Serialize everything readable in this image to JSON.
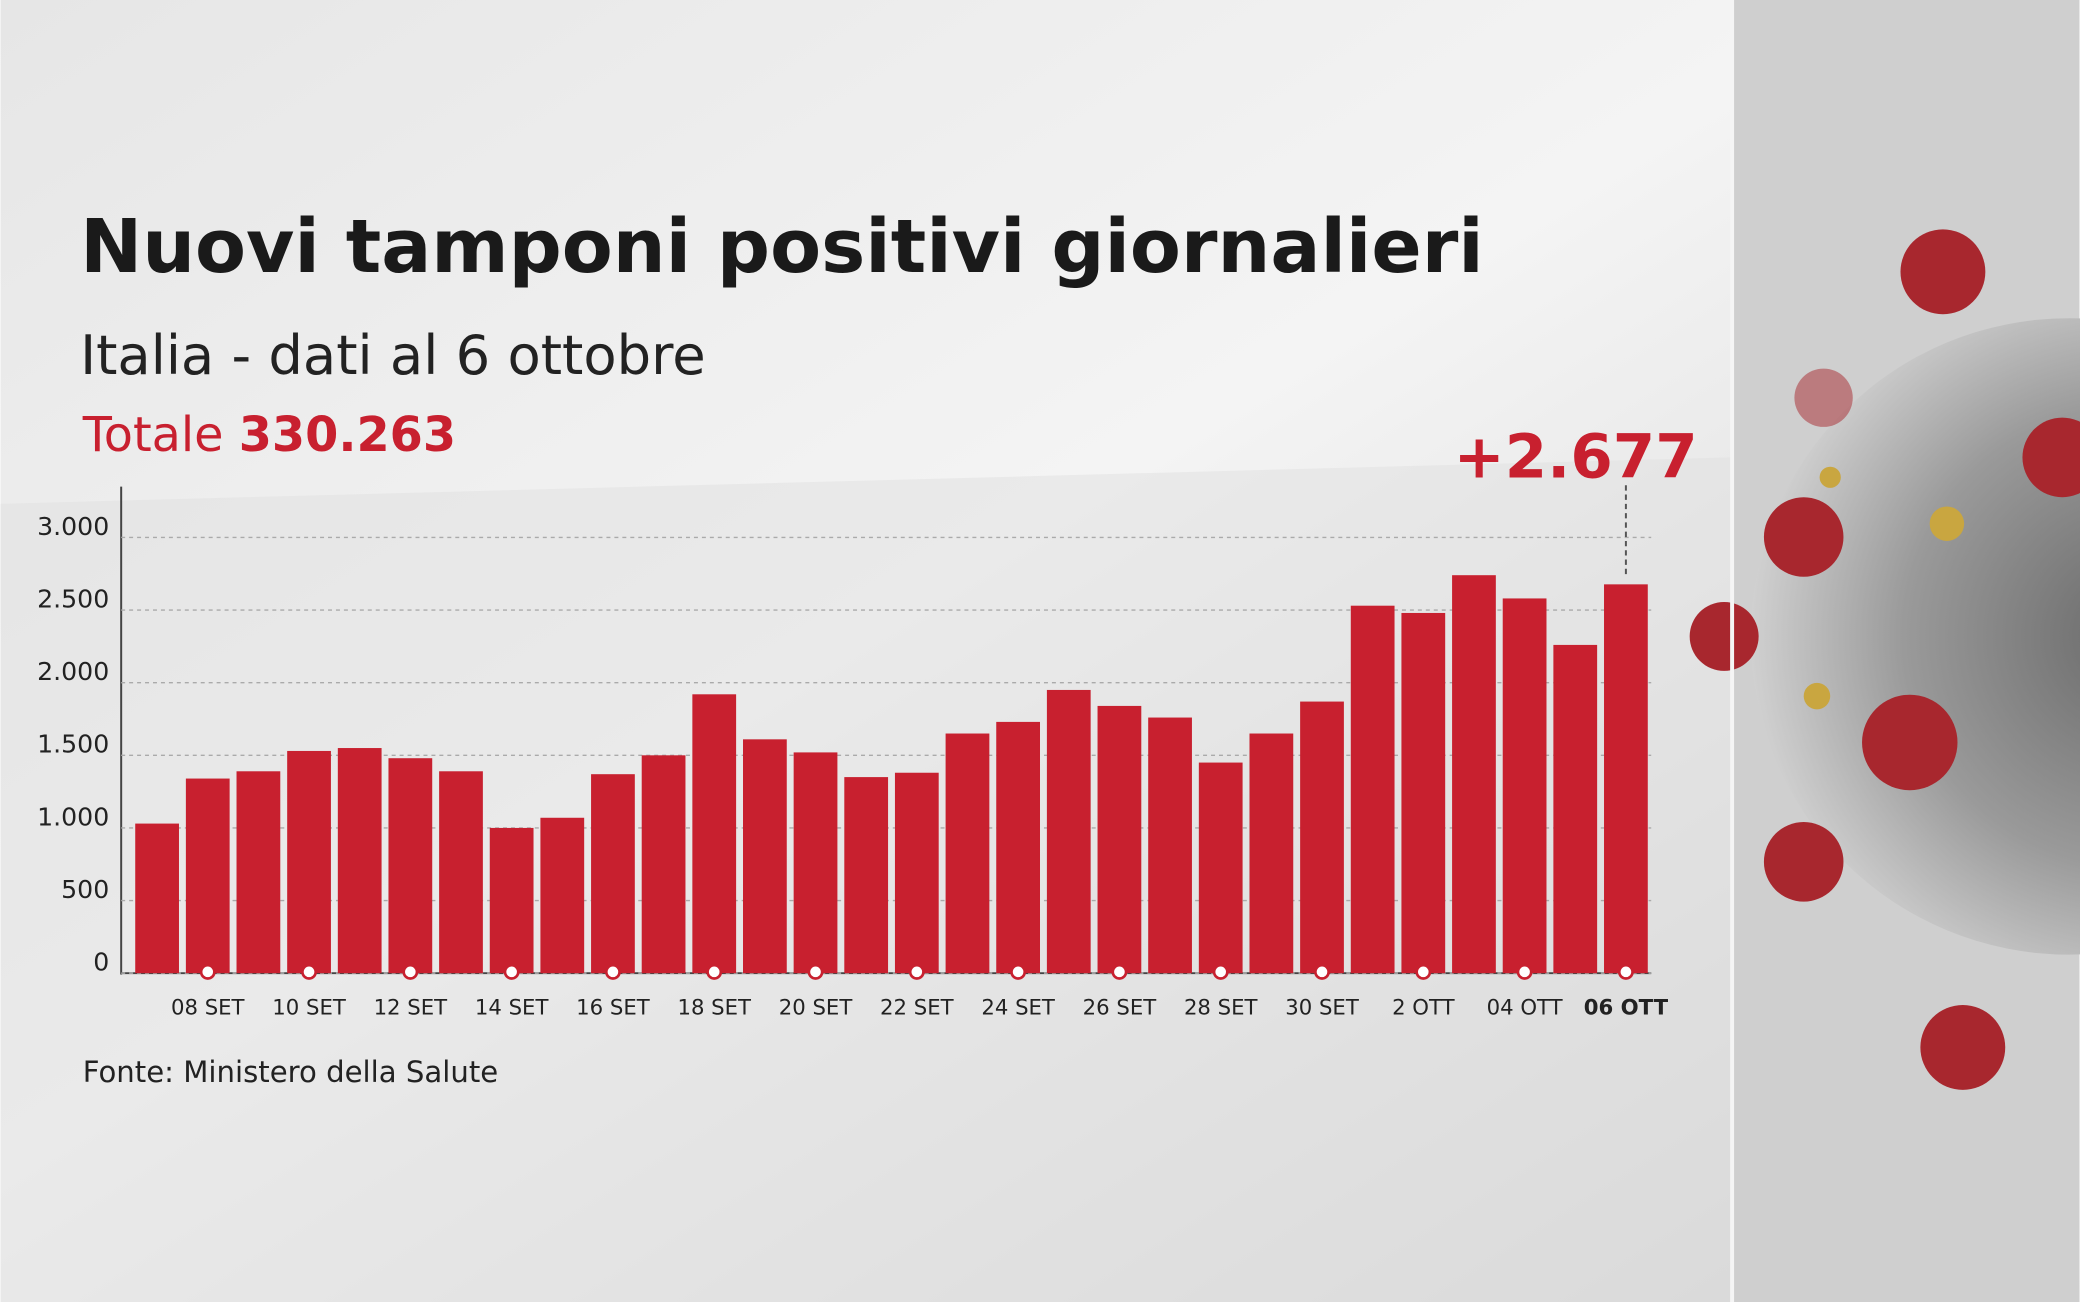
{
  "chart_data": {
    "type": "bar",
    "title": "Nuovi tamponi positivi giornalieri",
    "subtitle": "Italia - dati al 6 ottobre",
    "total_label": "Totale",
    "total_value": "330.263",
    "annotation": "+2.677",
    "source": "Fonte: Ministero della Salute",
    "categories": [
      null,
      "08 SET",
      null,
      "10 SET",
      null,
      "12 SET",
      null,
      "14 SET",
      null,
      "16 SET",
      null,
      "18 SET",
      null,
      "20 SET",
      null,
      "22 SET",
      null,
      "24 SET",
      null,
      "26 SET",
      null,
      "28 SET",
      null,
      "30 SET",
      null,
      "2 OTT",
      null,
      "04 OTT",
      null,
      "06 OTT"
    ],
    "values": [
      1030,
      1340,
      1390,
      1530,
      1550,
      1480,
      1390,
      1000,
      1070,
      1370,
      1500,
      1920,
      1610,
      1520,
      1350,
      1380,
      1650,
      1730,
      1950,
      1840,
      1760,
      1450,
      1650,
      1870,
      2530,
      2480,
      2740,
      2580,
      2260,
      2677
    ],
    "color": "#c8202f",
    "ylim": [
      0,
      3350
    ],
    "yticks": [
      0,
      500,
      {
        "value": 1000,
        "label": "1.000"
      },
      {
        "value": 1500,
        "label": "1.500"
      },
      {
        "value": 2000,
        "label": "2.000"
      },
      {
        "value": 2500,
        "label": "2.500"
      },
      {
        "value": 3000,
        "label": "3.000"
      }
    ],
    "grid": true
  }
}
